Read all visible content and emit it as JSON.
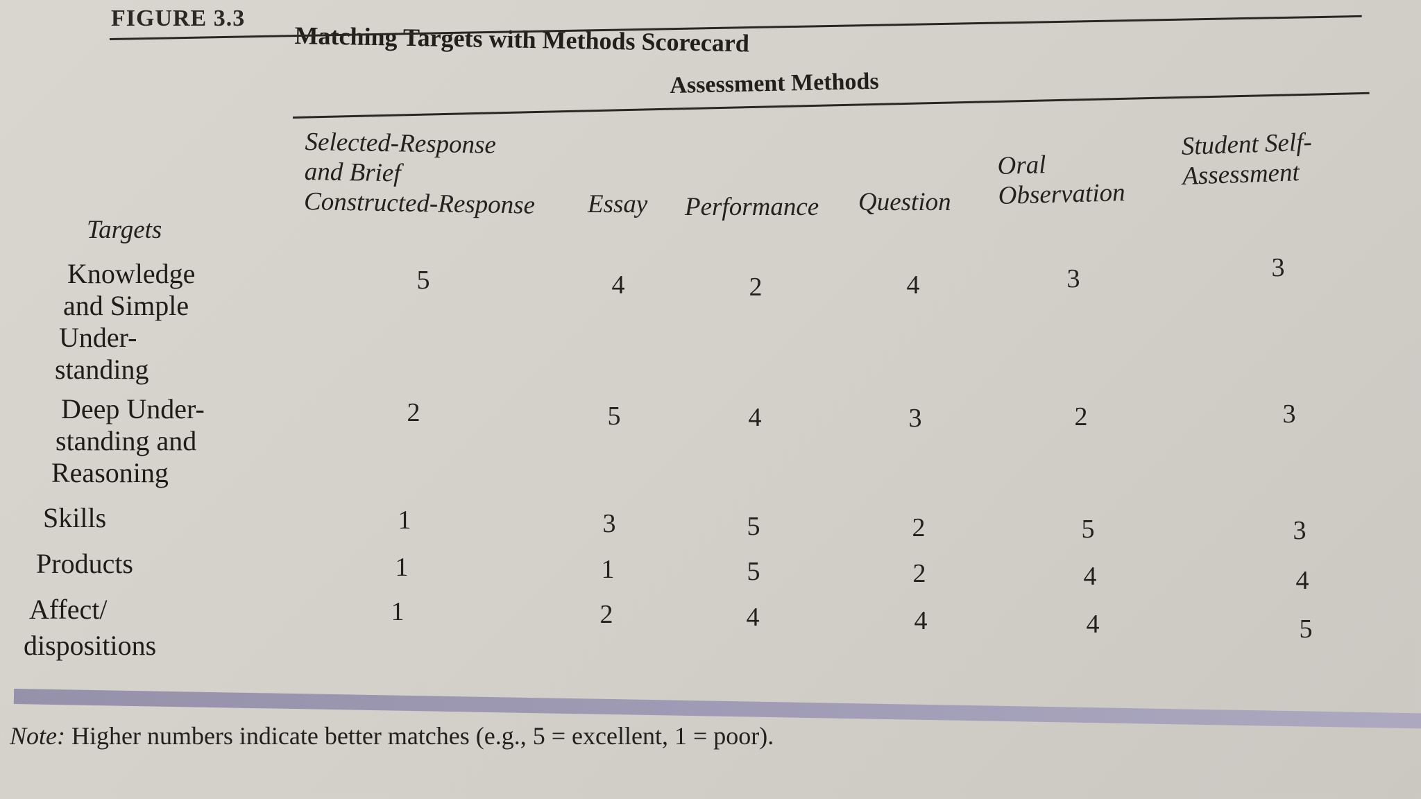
{
  "figure": {
    "label": "FIGURE 3.3",
    "title": "Matching Targets with Methods Scorecard"
  },
  "header": {
    "methods_title": "Assessment Methods",
    "targets_label": "Targets",
    "columns": [
      {
        "lines": [
          "Selected-Response",
          "and Brief",
          "Constructed-Response"
        ]
      },
      {
        "lines": [
          "Essay"
        ]
      },
      {
        "lines": [
          "Performance"
        ]
      },
      {
        "lines": [
          "Question"
        ]
      },
      {
        "lines": [
          "Oral",
          "Observation"
        ]
      },
      {
        "lines": [
          "Student Self-",
          "Assessment"
        ]
      }
    ]
  },
  "rows": [
    {
      "lines": [
        "Knowledge",
        "and Simple",
        "Under-",
        "standing"
      ],
      "values": [
        "5",
        "4",
        "2",
        "4",
        "3",
        "3"
      ]
    },
    {
      "lines": [
        "Deep Under-",
        "standing and",
        "Reasoning"
      ],
      "values": [
        "2",
        "5",
        "4",
        "3",
        "2",
        "3"
      ]
    },
    {
      "lines": [
        "Skills"
      ],
      "values": [
        "1",
        "3",
        "5",
        "2",
        "5",
        "3"
      ]
    },
    {
      "lines": [
        "Products"
      ],
      "values": [
        "1",
        "1",
        "5",
        "2",
        "4",
        "4"
      ]
    },
    {
      "lines": [
        "Affect/",
        "dispositions"
      ],
      "values": [
        "1",
        "2",
        "4",
        "4",
        "4",
        "5"
      ]
    }
  ],
  "note": {
    "prefix": "Note:",
    "text": " Higher numbers indicate better matches (e.g., 5 = excellent, 1 = poor)."
  }
}
